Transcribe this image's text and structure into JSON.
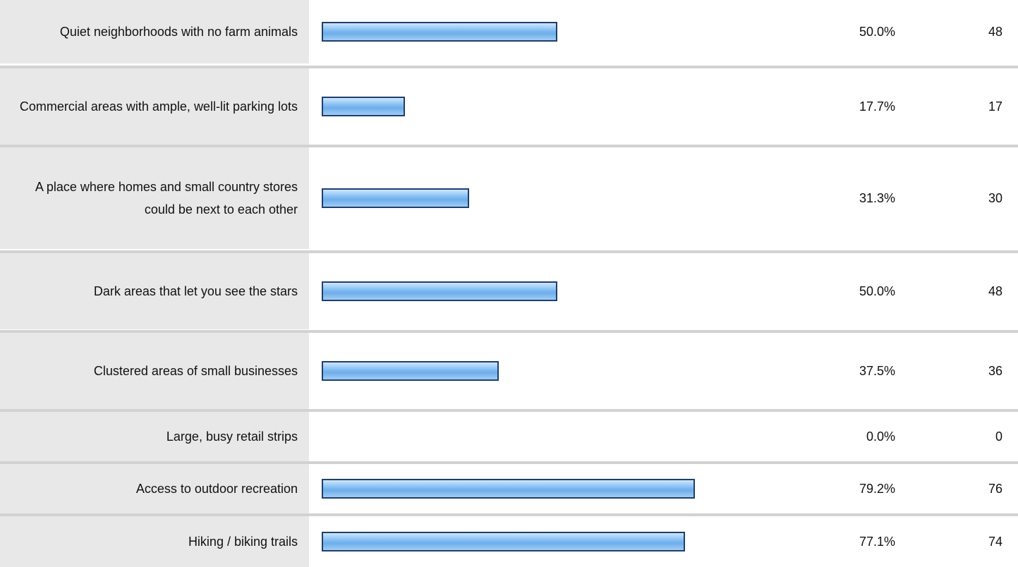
{
  "chart_data": {
    "type": "bar",
    "orientation": "horizontal",
    "xlim": [
      0,
      100
    ],
    "categories": [
      "Quiet neighborhoods with no farm animals",
      "Commercial areas with ample, well-lit parking lots",
      "A place where homes and small country stores could be next to each other",
      "Dark areas that let you see the stars",
      "Clustered areas of small businesses",
      "Large, busy retail strips",
      "Access to outdoor recreation",
      "Hiking / biking trails"
    ],
    "series": [
      {
        "values": [
          50.0,
          17.7,
          31.3,
          50.0,
          37.5,
          0.0,
          79.2,
          77.1
        ]
      }
    ],
    "percent_labels": [
      "50.0%",
      "17.7%",
      "31.3%",
      "50.0%",
      "37.5%",
      "0.0%",
      "79.2%",
      "77.1%"
    ],
    "counts": [
      "48",
      "17",
      "30",
      "48",
      "36",
      "0",
      "76",
      "74"
    ],
    "bar_color": "#79b7f1",
    "bar_border_color": "#1f3f6a",
    "label_background": "#e8e8e8",
    "divider_color": "#d2d2d2"
  }
}
